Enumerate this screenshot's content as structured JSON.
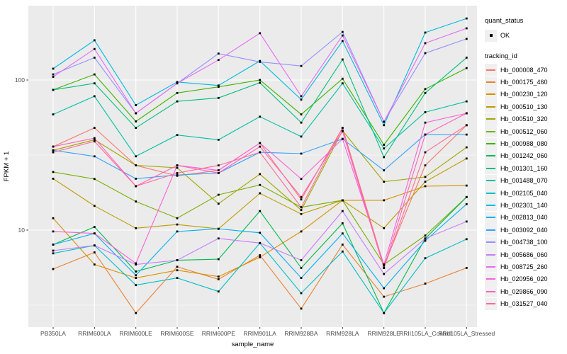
{
  "colors": {
    "panel_bg": "#EBEBEB",
    "grid": "#FFFFFF",
    "axis_text": "#4D4D4D",
    "title_text": "#000000",
    "tick_mark": "#333333",
    "legend_key_bg": "#F0F0F0",
    "point_marker": "#000000"
  },
  "legend": {
    "position": "right",
    "quant_status": {
      "title": "quant_status",
      "items": [
        {
          "label": "OK",
          "marker": "black-point"
        }
      ]
    },
    "tracking": {
      "title": "tracking_id"
    }
  },
  "chart_data": {
    "type": "line",
    "title": "",
    "xlabel": "sample_name",
    "ylabel": "FPKM + 1",
    "y_scale": "log10",
    "y_axis_tick_labels": [
      "100",
      "10"
    ],
    "y_tick_values": [
      100,
      10
    ],
    "y_minor_tick_values": [
      31.62,
      3.162
    ],
    "ylim_approx": [
      2.3,
      310
    ],
    "grid": true,
    "legend_position": "right",
    "point_marker": "small black square at every observation (quant_status = OK)",
    "categories": [
      "PB350LA",
      "RRIM600LA",
      "RRIM600LE",
      "RRIM600SE",
      "RRIM600PE",
      "RRIM901LA",
      "RRIM928BA",
      "RRIM928LA",
      "RRIM928LE",
      "RRII105LA_Control",
      "RRII105LA_Stressed"
    ],
    "series": [
      {
        "name": "Hb_000008_470",
        "color": "#F8766D",
        "values": [
          36,
          48,
          27,
          23,
          25,
          38,
          16,
          48,
          5.8,
          27,
          50
        ]
      },
      {
        "name": "Hb_000175_460",
        "color": "#EA8331",
        "values": [
          5.5,
          7.1,
          2.8,
          5.7,
          4.7,
          6.8,
          3.0,
          8.0,
          3.6,
          4.4,
          5.6
        ]
      },
      {
        "name": "Hb_000230_120",
        "color": "#D89000",
        "values": [
          12,
          5.9,
          4.8,
          5.4,
          4.9,
          6.6,
          9.8,
          15.8,
          15.8,
          19.6,
          19.8
        ]
      },
      {
        "name": "Hb_000510_130",
        "color": "#C09B00",
        "values": [
          22,
          14.5,
          10.3,
          10.9,
          10.2,
          17.6,
          12.8,
          15.8,
          10.3,
          21,
          30
        ]
      },
      {
        "name": "Hb_000510_320",
        "color": "#A3A500",
        "values": [
          34,
          40,
          27,
          26,
          15,
          23.6,
          13.6,
          46,
          21,
          22.6,
          35.6
        ]
      },
      {
        "name": "Hb_000512_060",
        "color": "#7CAE00",
        "values": [
          24.4,
          21.9,
          15.5,
          12,
          17.2,
          20,
          14.2,
          15.8,
          5.9,
          9.2,
          16.6
        ]
      },
      {
        "name": "Hb_000988_080",
        "color": "#39B600",
        "values": [
          86,
          109,
          53,
          82,
          90,
          100,
          59,
          102,
          37,
          87,
          120
        ]
      },
      {
        "name": "Hb_001242_060",
        "color": "#00BB4E",
        "values": [
          8.0,
          10.5,
          5.3,
          6.3,
          6.4,
          13.4,
          5.6,
          11.1,
          2.8,
          8.8,
          16.6
        ]
      },
      {
        "name": "Hb_001301_160",
        "color": "#00BF7D",
        "values": [
          86,
          95,
          48,
          72,
          76,
          96,
          52,
          137,
          30.6,
          82,
          141
        ]
      },
      {
        "name": "Hb_001488_070",
        "color": "#00C1A3",
        "values": [
          59,
          78,
          31,
          43,
          40,
          57,
          42,
          95,
          35,
          61,
          72
        ]
      },
      {
        "name": "Hb_002105_040",
        "color": "#00BFC4",
        "values": [
          7.0,
          7.9,
          4.3,
          4.8,
          3.9,
          8.2,
          3.8,
          7.2,
          2.8,
          6.5,
          8.7
        ]
      },
      {
        "name": "Hb_002301_140",
        "color": "#00BAE0",
        "values": [
          119,
          184,
          68,
          97,
          92,
          134,
          74,
          182,
          50,
          207,
          257
        ]
      },
      {
        "name": "Hb_002813_040",
        "color": "#00B0F6",
        "values": [
          8.0,
          9.5,
          5.0,
          9.8,
          10.2,
          9.6,
          4.8,
          9.5,
          4.1,
          8.5,
          14.9
        ]
      },
      {
        "name": "Hb_003092_040",
        "color": "#35A2FF",
        "values": [
          34,
          31,
          22,
          23.3,
          24,
          33,
          32.3,
          40.5,
          25,
          43.3,
          43.3
        ]
      },
      {
        "name": "Hb_004738_100",
        "color": "#9590FF",
        "values": [
          109,
          141,
          60,
          95,
          150,
          132,
          124,
          209,
          52.7,
          151,
          188
        ]
      },
      {
        "name": "Hb_005686_060",
        "color": "#C77CFF",
        "values": [
          7.3,
          7.9,
          5.9,
          6.3,
          8.8,
          8.2,
          6.3,
          13.4,
          5.1,
          8.8,
          11.4
        ]
      },
      {
        "name": "Hb_008725_260",
        "color": "#E76BF3",
        "values": [
          105,
          161,
          60,
          95,
          136,
          205,
          78,
          198,
          52.7,
          176,
          221
        ]
      },
      {
        "name": "Hb_020956_020",
        "color": "#FA62DB",
        "values": [
          9.8,
          9.5,
          6.0,
          27,
          25,
          38,
          21.9,
          40.5,
          5.9,
          52,
          60
        ]
      },
      {
        "name": "Hb_029866_090",
        "color": "#FF62BC",
        "values": [
          36,
          41,
          19.6,
          27,
          24,
          36,
          16.6,
          45.5,
          5.6,
          43.3,
          60
        ]
      },
      {
        "name": "Hb_031527_040",
        "color": "#FF6A98",
        "values": [
          33,
          39,
          19.6,
          24,
          27,
          33,
          14.2,
          48,
          5.6,
          33,
          50
        ]
      }
    ]
  }
}
